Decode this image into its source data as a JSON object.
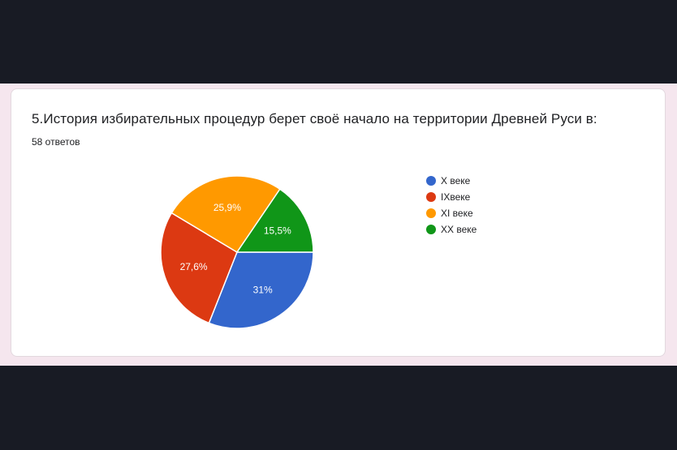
{
  "question": {
    "title": "5.История избирательных процедур берет своё начало на территории Древней Руси в:",
    "answer_count": "58 ответов"
  },
  "chart_data": {
    "type": "pie",
    "title": "5.История избирательных процедур берет своё начало на территории Древней Руси в:",
    "legend_position": "right",
    "slices": [
      {
        "label": "X веке",
        "value": 31,
        "data_label": "31%",
        "color": "#3366cc"
      },
      {
        "label": "IXвеке",
        "value": 27.6,
        "data_label": "27,6%",
        "color": "#dc3912"
      },
      {
        "label": "XI веке",
        "value": 25.9,
        "data_label": "25,9%",
        "color": "#ff9900"
      },
      {
        "label": "XX веке",
        "value": 15.5,
        "data_label": "15,5%",
        "color": "#109618"
      }
    ]
  }
}
